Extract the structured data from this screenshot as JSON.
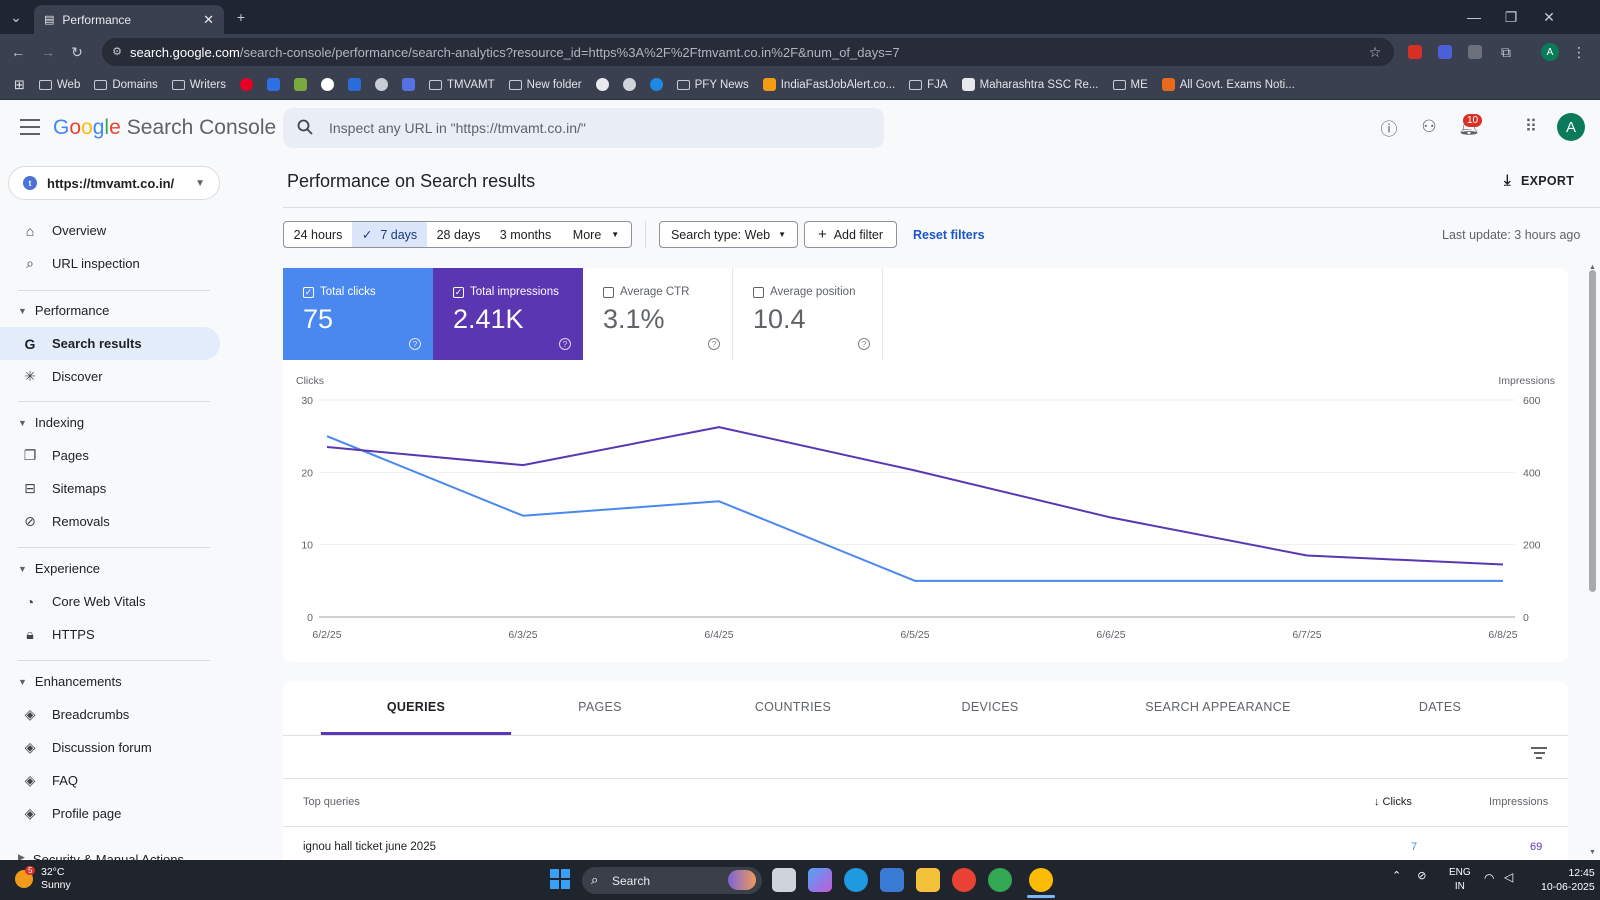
{
  "browser": {
    "tab_title": "Performance",
    "url_host": "search.google.com",
    "url_rest": "/search-console/performance/search-analytics?resource_id=https%3A%2F%2Ftmvamt.co.in%2F&num_of_days=7",
    "bookmarks": [
      "Web",
      "Domains",
      "Writers",
      "TMVAMT",
      "New folder",
      "PFY News",
      "IndiaFastJobAlert.co...",
      "FJA",
      "Maharashtra SSC Re...",
      "ME",
      "All Govt. Exams Noti..."
    ]
  },
  "header": {
    "logo_letters": [
      "G",
      "o",
      "o",
      "g",
      "l",
      "e"
    ],
    "product": "Search Console",
    "inspect_placeholder": "Inspect any URL in \"https://tmvamt.co.in/\"",
    "notification_count": "10",
    "avatar_initial": "A"
  },
  "sidebar": {
    "property": "https://tmvamt.co.in/",
    "overview": "Overview",
    "url_inspection": "URL inspection",
    "performance": "Performance",
    "search_results": "Search results",
    "discover": "Discover",
    "indexing": "Indexing",
    "pages": "Pages",
    "sitemaps": "Sitemaps",
    "removals": "Removals",
    "experience": "Experience",
    "core_web_vitals": "Core Web Vitals",
    "https": "HTTPS",
    "enhancements": "Enhancements",
    "breadcrumbs": "Breadcrumbs",
    "discussion_forum": "Discussion forum",
    "faq": "FAQ",
    "profile_page": "Profile page",
    "security": "Security & Manual Actions"
  },
  "main": {
    "title": "Performance on Search results",
    "export": "EXPORT",
    "date_chips": [
      "24 hours",
      "7 days",
      "28 days",
      "3 months",
      "More"
    ],
    "selected_chip": "7 days",
    "search_type": "Search type: Web",
    "add_filter": "Add filter",
    "reset_filters": "Reset filters",
    "last_update": "Last update: 3 hours ago"
  },
  "metrics": {
    "clicks_label": "Total clicks",
    "clicks_value": "75",
    "impressions_label": "Total impressions",
    "impressions_value": "2.41K",
    "ctr_label": "Average CTR",
    "ctr_value": "3.1%",
    "position_label": "Average position",
    "position_value": "10.4",
    "clicks_color": "#4a88f0",
    "impressions_color": "#5b36b2"
  },
  "chart_data": {
    "type": "line",
    "x": [
      "6/2/25",
      "6/3/25",
      "6/4/25",
      "6/5/25",
      "6/6/25",
      "6/7/25",
      "6/8/25"
    ],
    "left_axis_label": "Clicks",
    "right_axis_label": "Impressions",
    "left_ticks": [
      0,
      10,
      20,
      30
    ],
    "right_ticks": [
      0,
      200,
      400,
      600
    ],
    "left_ylim": [
      0,
      30
    ],
    "right_ylim": [
      0,
      600
    ],
    "grid": true,
    "series": [
      {
        "name": "Clicks",
        "axis": "left",
        "color": "#4a88f0",
        "values": [
          25,
          14,
          16,
          5,
          5,
          5,
          5
        ]
      },
      {
        "name": "Impressions",
        "axis": "right",
        "color": "#5b36b2",
        "values": [
          470,
          420,
          525,
          405,
          275,
          170,
          145
        ]
      }
    ]
  },
  "table": {
    "tabs": [
      "QUERIES",
      "PAGES",
      "COUNTRIES",
      "DEVICES",
      "SEARCH APPEARANCE",
      "DATES"
    ],
    "col_query": "Top queries",
    "col_clicks": "Clicks",
    "col_impressions": "Impressions",
    "rows": [
      {
        "query": "ignou hall ticket june 2025",
        "clicks": "7",
        "impressions": "69"
      }
    ]
  },
  "taskbar": {
    "temp": "32°C",
    "weather": "Sunny",
    "weather_badge": "5",
    "search": "Search",
    "lang1": "ENG",
    "lang2": "IN",
    "time": "12:45",
    "date": "10-06-2025"
  }
}
